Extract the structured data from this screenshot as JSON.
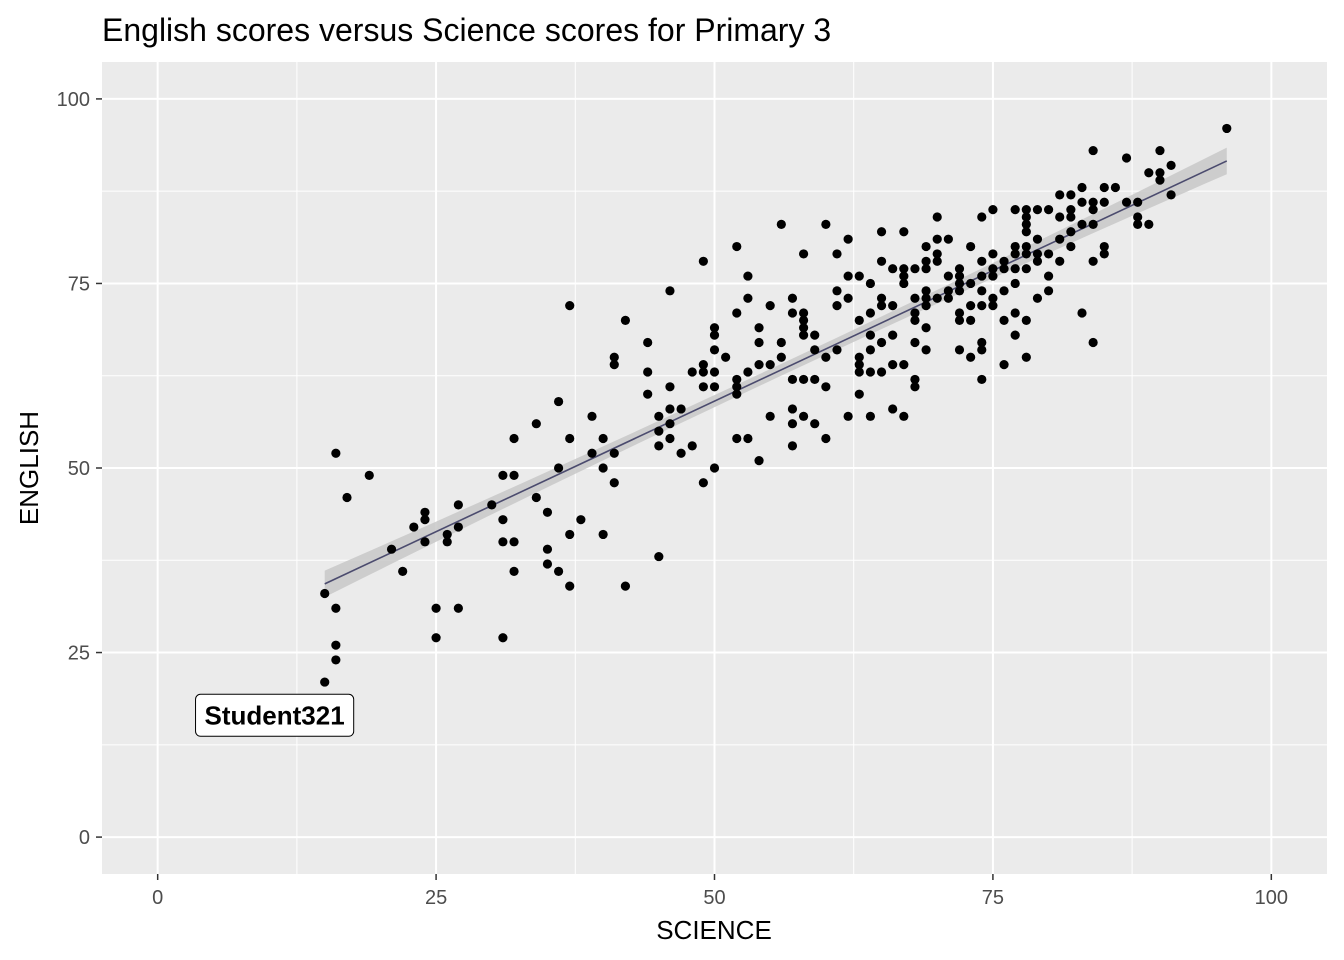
{
  "chart_data": {
    "type": "scatter",
    "title": "English scores versus Science scores for Primary 3",
    "xlabel": "SCIENCE",
    "ylabel": "ENGLISH",
    "xlim": [
      -5,
      105
    ],
    "ylim": [
      -5,
      105
    ],
    "x_ticks": [
      0,
      25,
      50,
      75,
      100
    ],
    "y_ticks": [
      0,
      25,
      50,
      75,
      100
    ],
    "x_tick_labels": [
      "0",
      "25",
      "50",
      "75",
      "100"
    ],
    "y_tick_labels": [
      "0",
      "25",
      "50",
      "75",
      "100"
    ],
    "grid": true,
    "colors": {
      "panel": "#ebebeb",
      "grid": "#ffffff",
      "point": "#000000",
      "fit_line": "#4b4b6e",
      "ci_band": "#c8c8c8"
    },
    "points": [
      [
        15,
        21
      ],
      [
        15,
        33
      ],
      [
        16,
        24
      ],
      [
        16,
        26
      ],
      [
        16,
        31
      ],
      [
        16,
        52
      ],
      [
        17,
        46
      ],
      [
        19,
        49
      ],
      [
        21,
        39
      ],
      [
        22,
        36
      ],
      [
        23,
        42
      ],
      [
        24,
        40
      ],
      [
        24,
        43
      ],
      [
        24,
        44
      ],
      [
        25,
        27
      ],
      [
        25,
        31
      ],
      [
        26,
        40
      ],
      [
        26,
        41
      ],
      [
        27,
        31
      ],
      [
        27,
        42
      ],
      [
        27,
        45
      ],
      [
        30,
        45
      ],
      [
        31,
        27
      ],
      [
        31,
        40
      ],
      [
        31,
        43
      ],
      [
        31,
        49
      ],
      [
        32,
        36
      ],
      [
        32,
        40
      ],
      [
        32,
        49
      ],
      [
        32,
        54
      ],
      [
        34,
        46
      ],
      [
        34,
        56
      ],
      [
        35,
        37
      ],
      [
        35,
        39
      ],
      [
        35,
        44
      ],
      [
        36,
        36
      ],
      [
        36,
        50
      ],
      [
        36,
        59
      ],
      [
        37,
        34
      ],
      [
        37,
        41
      ],
      [
        37,
        54
      ],
      [
        37,
        72
      ],
      [
        38,
        43
      ],
      [
        39,
        52
      ],
      [
        39,
        57
      ],
      [
        40,
        41
      ],
      [
        40,
        50
      ],
      [
        40,
        54
      ],
      [
        41,
        48
      ],
      [
        41,
        52
      ],
      [
        41,
        64
      ],
      [
        41,
        65
      ],
      [
        42,
        34
      ],
      [
        42,
        70
      ],
      [
        44,
        60
      ],
      [
        44,
        63
      ],
      [
        44,
        67
      ],
      [
        45,
        38
      ],
      [
        45,
        53
      ],
      [
        45,
        55
      ],
      [
        45,
        57
      ],
      [
        46,
        54
      ],
      [
        46,
        56
      ],
      [
        46,
        58
      ],
      [
        46,
        61
      ],
      [
        46,
        74
      ],
      [
        47,
        52
      ],
      [
        47,
        58
      ],
      [
        48,
        53
      ],
      [
        48,
        63
      ],
      [
        49,
        48
      ],
      [
        49,
        61
      ],
      [
        49,
        63
      ],
      [
        49,
        64
      ],
      [
        49,
        78
      ],
      [
        50,
        50
      ],
      [
        50,
        61
      ],
      [
        50,
        63
      ],
      [
        50,
        66
      ],
      [
        50,
        68
      ],
      [
        50,
        69
      ],
      [
        51,
        65
      ],
      [
        52,
        54
      ],
      [
        52,
        60
      ],
      [
        52,
        61
      ],
      [
        52,
        62
      ],
      [
        52,
        71
      ],
      [
        52,
        80
      ],
      [
        53,
        54
      ],
      [
        53,
        63
      ],
      [
        53,
        73
      ],
      [
        53,
        76
      ],
      [
        54,
        51
      ],
      [
        54,
        64
      ],
      [
        54,
        67
      ],
      [
        54,
        69
      ],
      [
        55,
        57
      ],
      [
        55,
        64
      ],
      [
        55,
        72
      ],
      [
        56,
        65
      ],
      [
        56,
        67
      ],
      [
        56,
        83
      ],
      [
        57,
        53
      ],
      [
        57,
        56
      ],
      [
        57,
        58
      ],
      [
        57,
        62
      ],
      [
        57,
        71
      ],
      [
        57,
        73
      ],
      [
        58,
        57
      ],
      [
        58,
        62
      ],
      [
        58,
        68
      ],
      [
        58,
        69
      ],
      [
        58,
        70
      ],
      [
        58,
        71
      ],
      [
        58,
        79
      ],
      [
        59,
        56
      ],
      [
        59,
        62
      ],
      [
        59,
        66
      ],
      [
        59,
        68
      ],
      [
        60,
        54
      ],
      [
        60,
        61
      ],
      [
        60,
        65
      ],
      [
        60,
        83
      ],
      [
        61,
        66
      ],
      [
        61,
        72
      ],
      [
        61,
        74
      ],
      [
        61,
        79
      ],
      [
        62,
        57
      ],
      [
        62,
        73
      ],
      [
        62,
        76
      ],
      [
        62,
        81
      ],
      [
        63,
        60
      ],
      [
        63,
        63
      ],
      [
        63,
        64
      ],
      [
        63,
        65
      ],
      [
        63,
        70
      ],
      [
        63,
        76
      ],
      [
        64,
        57
      ],
      [
        64,
        63
      ],
      [
        64,
        66
      ],
      [
        64,
        68
      ],
      [
        64,
        71
      ],
      [
        64,
        75
      ],
      [
        65,
        63
      ],
      [
        65,
        67
      ],
      [
        65,
        72
      ],
      [
        65,
        73
      ],
      [
        65,
        78
      ],
      [
        65,
        82
      ],
      [
        66,
        58
      ],
      [
        66,
        64
      ],
      [
        66,
        68
      ],
      [
        66,
        72
      ],
      [
        66,
        77
      ],
      [
        67,
        57
      ],
      [
        67,
        64
      ],
      [
        67,
        75
      ],
      [
        67,
        76
      ],
      [
        67,
        77
      ],
      [
        67,
        82
      ],
      [
        68,
        61
      ],
      [
        68,
        62
      ],
      [
        68,
        67
      ],
      [
        68,
        70
      ],
      [
        68,
        71
      ],
      [
        68,
        73
      ],
      [
        68,
        77
      ],
      [
        69,
        66
      ],
      [
        69,
        69
      ],
      [
        69,
        72
      ],
      [
        69,
        73
      ],
      [
        69,
        74
      ],
      [
        69,
        77
      ],
      [
        69,
        78
      ],
      [
        69,
        80
      ],
      [
        70,
        73
      ],
      [
        70,
        78
      ],
      [
        70,
        79
      ],
      [
        70,
        81
      ],
      [
        70,
        84
      ],
      [
        71,
        73
      ],
      [
        71,
        74
      ],
      [
        71,
        76
      ],
      [
        71,
        81
      ],
      [
        72,
        66
      ],
      [
        72,
        70
      ],
      [
        72,
        71
      ],
      [
        72,
        74
      ],
      [
        72,
        75
      ],
      [
        72,
        76
      ],
      [
        72,
        77
      ],
      [
        73,
        65
      ],
      [
        73,
        70
      ],
      [
        73,
        72
      ],
      [
        73,
        75
      ],
      [
        73,
        80
      ],
      [
        74,
        62
      ],
      [
        74,
        66
      ],
      [
        74,
        67
      ],
      [
        74,
        72
      ],
      [
        74,
        74
      ],
      [
        74,
        76
      ],
      [
        74,
        78
      ],
      [
        74,
        84
      ],
      [
        75,
        72
      ],
      [
        75,
        73
      ],
      [
        75,
        76
      ],
      [
        75,
        77
      ],
      [
        75,
        79
      ],
      [
        75,
        85
      ],
      [
        76,
        64
      ],
      [
        76,
        70
      ],
      [
        76,
        74
      ],
      [
        76,
        77
      ],
      [
        76,
        78
      ],
      [
        77,
        68
      ],
      [
        77,
        71
      ],
      [
        77,
        75
      ],
      [
        77,
        77
      ],
      [
        77,
        79
      ],
      [
        77,
        80
      ],
      [
        77,
        85
      ],
      [
        78,
        65
      ],
      [
        78,
        70
      ],
      [
        78,
        77
      ],
      [
        78,
        79
      ],
      [
        78,
        80
      ],
      [
        78,
        82
      ],
      [
        78,
        83
      ],
      [
        78,
        84
      ],
      [
        78,
        85
      ],
      [
        79,
        73
      ],
      [
        79,
        78
      ],
      [
        79,
        79
      ],
      [
        79,
        81
      ],
      [
        79,
        85
      ],
      [
        80,
        74
      ],
      [
        80,
        76
      ],
      [
        80,
        79
      ],
      [
        80,
        85
      ],
      [
        81,
        78
      ],
      [
        81,
        81
      ],
      [
        81,
        84
      ],
      [
        81,
        87
      ],
      [
        82,
        80
      ],
      [
        82,
        82
      ],
      [
        82,
        84
      ],
      [
        82,
        85
      ],
      [
        82,
        87
      ],
      [
        83,
        71
      ],
      [
        83,
        83
      ],
      [
        83,
        86
      ],
      [
        83,
        88
      ],
      [
        84,
        67
      ],
      [
        84,
        78
      ],
      [
        84,
        83
      ],
      [
        84,
        85
      ],
      [
        84,
        86
      ],
      [
        84,
        93
      ],
      [
        85,
        79
      ],
      [
        85,
        80
      ],
      [
        85,
        86
      ],
      [
        85,
        88
      ],
      [
        86,
        88
      ],
      [
        87,
        86
      ],
      [
        87,
        92
      ],
      [
        88,
        83
      ],
      [
        88,
        84
      ],
      [
        88,
        86
      ],
      [
        89,
        83
      ],
      [
        89,
        90
      ],
      [
        90,
        89
      ],
      [
        90,
        90
      ],
      [
        90,
        93
      ],
      [
        91,
        87
      ],
      [
        91,
        91
      ],
      [
        96,
        96
      ]
    ],
    "fit": {
      "method": "linear",
      "x_range": [
        15,
        96
      ],
      "y_start": 34.3,
      "y_end": 91.6,
      "ci_half_width_ends": 1.8,
      "ci_half_width_center": 0.8
    },
    "annotations": [
      {
        "text": "Student321",
        "x": 10.5,
        "y": 16.5
      }
    ]
  }
}
